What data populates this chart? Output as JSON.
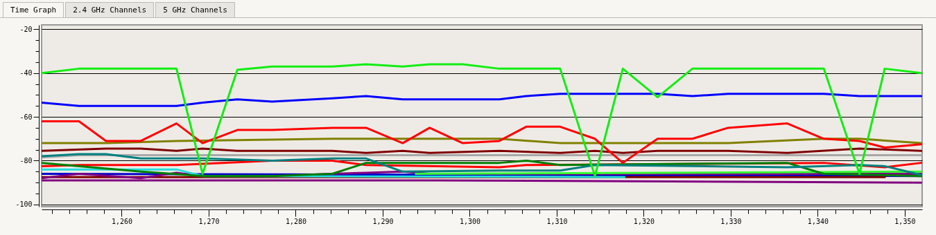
{
  "chart_data": {
    "type": "line",
    "annotations": [
      "Time Graph",
      "2.4 GHz Channels",
      "5 GHz Channels"
    ],
    "xlim": [
      1250.8,
      1352
    ],
    "xticks": [
      {
        "value": 1252,
        "label": null
      },
      {
        "value": 1254,
        "label": null
      },
      {
        "value": 1256,
        "label": null
      },
      {
        "value": 1258,
        "label": null
      },
      {
        "value": 1260,
        "label": "1,260"
      },
      {
        "value": 1262,
        "label": null
      },
      {
        "value": 1264,
        "label": null
      },
      {
        "value": 1266,
        "label": null
      },
      {
        "value": 1268,
        "label": null
      },
      {
        "value": 1270,
        "label": "1,270"
      },
      {
        "value": 1272,
        "label": null
      },
      {
        "value": 1274,
        "label": null
      },
      {
        "value": 1276,
        "label": null
      },
      {
        "value": 1278,
        "label": null
      },
      {
        "value": 1280,
        "label": "1,280"
      },
      {
        "value": 1282,
        "label": null
      },
      {
        "value": 1284,
        "label": null
      },
      {
        "value": 1286,
        "label": null
      },
      {
        "value": 1288,
        "label": null
      },
      {
        "value": 1290,
        "label": "1,290"
      },
      {
        "value": 1292,
        "label": null
      },
      {
        "value": 1294,
        "label": null
      },
      {
        "value": 1296,
        "label": null
      },
      {
        "value": 1298,
        "label": null
      },
      {
        "value": 1300,
        "label": "1,300"
      },
      {
        "value": 1302,
        "label": null
      },
      {
        "value": 1304,
        "label": null
      },
      {
        "value": 1306,
        "label": null
      },
      {
        "value": 1308,
        "label": null
      },
      {
        "value": 1310,
        "label": "1,310"
      },
      {
        "value": 1312,
        "label": null
      },
      {
        "value": 1314,
        "label": null
      },
      {
        "value": 1316,
        "label": null
      },
      {
        "value": 1318,
        "label": null
      },
      {
        "value": 1320,
        "label": "1,320"
      },
      {
        "value": 1322,
        "label": null
      },
      {
        "value": 1324,
        "label": null
      },
      {
        "value": 1326,
        "label": null
      },
      {
        "value": 1328,
        "label": null
      },
      {
        "value": 1330,
        "label": "1,330"
      },
      {
        "value": 1332,
        "label": null
      },
      {
        "value": 1334,
        "label": null
      },
      {
        "value": 1336,
        "label": null
      },
      {
        "value": 1338,
        "label": null
      },
      {
        "value": 1340,
        "label": "1,340"
      },
      {
        "value": 1342,
        "label": null
      },
      {
        "value": 1344,
        "label": null
      },
      {
        "value": 1346,
        "label": null
      },
      {
        "value": 1348,
        "label": null
      },
      {
        "value": 1350,
        "label": "1,350"
      }
    ],
    "ylim": [
      -101,
      -18
    ],
    "yticks": [
      -20,
      {
        "value": -25,
        "label": null
      },
      {
        "value": -30,
        "label": null
      },
      {
        "value": -35,
        "label": null
      },
      -40,
      {
        "value": -45,
        "label": null
      },
      {
        "value": -50,
        "label": null
      },
      {
        "value": -55,
        "label": null
      },
      -60,
      {
        "value": -65,
        "label": null
      },
      {
        "value": -70,
        "label": null
      },
      {
        "value": -75,
        "label": null
      },
      -80,
      {
        "value": -85,
        "label": null
      },
      {
        "value": -90,
        "label": null
      },
      {
        "value": -95,
        "label": null
      },
      -100
    ],
    "grid": "y",
    "marker": "none",
    "line_style": "solid",
    "series": [
      {
        "color": "#808000",
        "x": [
          1250.8,
          1258.2,
          1266.3,
          1284.2,
          1303.4,
          1310.4,
          1329.7,
          1340.7,
          1344.8,
          1351.9
        ],
        "values": [
          -72,
          -72,
          -71,
          -70,
          -70,
          -72,
          -72,
          -70,
          -70,
          -72
        ]
      },
      {
        "color": "#800000",
        "x": [
          1250.8,
          1258.2,
          1262.2,
          1266.3,
          1269.3,
          1273.3,
          1284.2,
          1288.1,
          1292.3,
          1295.4,
          1303.4,
          1310.4,
          1314.4,
          1317.6,
          1321.6,
          1329.7,
          1336.5,
          1344.8,
          1351.9
        ],
        "values": [
          -75.5,
          -74.5,
          -74.5,
          -75.5,
          -74.5,
          -75.5,
          -75.5,
          -76.5,
          -75.5,
          -76.5,
          -75.5,
          -76.5,
          -75.5,
          -76.5,
          -75.5,
          -75.5,
          -76.5,
          -74.5,
          -75.5
        ]
      },
      {
        "color": "#a8a8a8",
        "x": [
          1250.8,
          1255.1,
          1351.9
        ],
        "values": [
          -78.5,
          -77.5,
          -77.5
        ]
      },
      {
        "color": "#800080",
        "x": [
          1250.8,
          1296.0,
          1351.9
        ],
        "values": [
          -89,
          -89,
          -90
        ]
      },
      {
        "color": "#0000cc",
        "x": [
          1250.8,
          1351.9
        ],
        "values": [
          -86,
          -87
        ]
      },
      {
        "color": "#800000",
        "x": [
          1250.8,
          1347.7
        ],
        "values": [
          -87.5,
          -87.5
        ]
      },
      {
        "color": "#800080",
        "x": [
          1250.8,
          1255.1,
          1262.2,
          1266.3,
          1269.3,
          1277.3,
          1284.2,
          1288.1,
          1292.3,
          1295.4,
          1351.9
        ],
        "values": [
          -88,
          -86,
          -88,
          -85.5,
          -87,
          -87,
          -86,
          -85.5,
          -85,
          -86,
          -86
        ]
      },
      {
        "color": "#22dddd",
        "x": [
          1250.8,
          1266.3,
          1269.3,
          1317.8
        ],
        "values": [
          -84,
          -84,
          -87,
          -87.5
        ]
      },
      {
        "color": "#33ff33",
        "x": [
          1293.8,
          1351.9
        ],
        "values": [
          -86,
          -85
        ]
      },
      {
        "color": "#ff0000",
        "x": [
          1250.8,
          1255.1,
          1266.3,
          1277.3,
          1284.2,
          1288.1,
          1303.4,
          1306.5,
          1340.7,
          1347.7,
          1351.9
        ],
        "values": [
          -82.5,
          -82,
          -82,
          -80,
          -80,
          -82,
          -83,
          -82,
          -81,
          -83,
          -81
        ]
      },
      {
        "color": "#008000",
        "x": [
          1250.8,
          1262.2,
          1269.3,
          1277.3,
          1284.2,
          1288.1,
          1303.4,
          1306.5,
          1310.4,
          1336.5,
          1340.7,
          1351.9
        ],
        "values": [
          -81,
          -85,
          -87,
          -87,
          -86,
          -81,
          -81,
          -80,
          -82,
          -81,
          -86,
          -87
        ]
      },
      {
        "color": "#008080",
        "x": [
          1250.8,
          1255.1,
          1258.2,
          1262.2,
          1269.3,
          1277.3,
          1284.2,
          1288.1,
          1292.3,
          1303.4,
          1310.4,
          1314.4,
          1336.5,
          1344.8,
          1347.7,
          1351.9
        ],
        "values": [
          -78,
          -77,
          -77,
          -79,
          -79,
          -80,
          -79,
          -79,
          -85,
          -84.5,
          -84.5,
          -82,
          -83,
          -82,
          -82.5,
          -86.5
        ]
      },
      {
        "color": "#ff0000",
        "x": [
          1250.8,
          1255.1,
          1258.2,
          1262.2,
          1266.3,
          1269.3,
          1273.3,
          1277.3,
          1284.2,
          1288.1,
          1292.3,
          1295.4,
          1299.2,
          1303.4,
          1306.5,
          1310.4,
          1314.4,
          1317.6,
          1321.6,
          1325.6,
          1329.7,
          1336.5,
          1340.7,
          1344.8,
          1347.7,
          1351.9
        ],
        "values": [
          -62,
          -62,
          -71,
          -71,
          -63,
          -72,
          -66,
          -66,
          -65,
          -65,
          -72,
          -65,
          -72,
          -71,
          -64.5,
          -64.5,
          -70,
          -81,
          -70,
          -70,
          -65,
          -63,
          -70,
          -71,
          -74,
          -72.5
        ]
      },
      {
        "color": "#0000ff",
        "x": [
          1250.8,
          1255.1,
          1266.3,
          1269.3,
          1273.3,
          1277.3,
          1284.2,
          1288.1,
          1292.3,
          1303.4,
          1306.5,
          1310.4,
          1321.6,
          1325.6,
          1329.7,
          1340.7,
          1344.8,
          1351.9
        ],
        "values": [
          -53.5,
          -55,
          -55,
          -53.5,
          -52,
          -53,
          -51.5,
          -50.5,
          -52,
          -52,
          -50.5,
          -49.5,
          -49.5,
          -50.5,
          -49.5,
          -49.5,
          -50.5,
          -50.5
        ]
      },
      {
        "color": "#11ee11",
        "x": [
          1250.8,
          1255.1,
          1266.3,
          1269.3,
          1273.3,
          1277.3,
          1284.2,
          1288.1,
          1292.3,
          1295.4,
          1299.2,
          1303.4,
          1310.4,
          1314.4,
          1317.6,
          1321.6,
          1325.6,
          1336.5,
          1340.7,
          1344.8,
          1347.7,
          1351.9
        ],
        "values": [
          -40,
          -38,
          -38,
          -86,
          -38.5,
          -37,
          -37,
          -36,
          -37,
          -36,
          -36,
          -38,
          -38,
          -87,
          -38,
          -51,
          -38,
          -38,
          -38,
          -86,
          -38,
          -40
        ]
      }
    ]
  }
}
